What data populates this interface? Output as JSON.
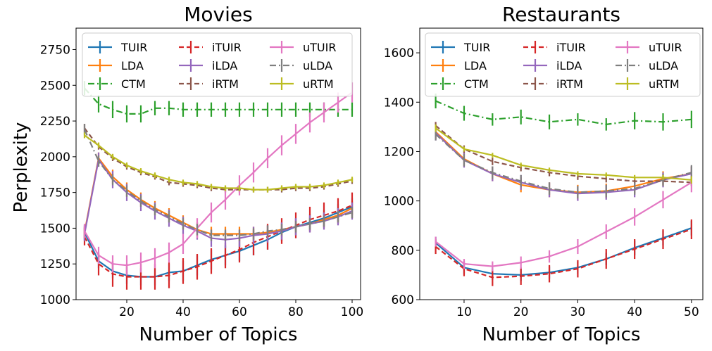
{
  "figure": {
    "ylabel": "Perplexity"
  },
  "series_styles": {
    "TUIR": {
      "color": "#1f77b4",
      "dash": "solid"
    },
    "LDA": {
      "color": "#ff7f0e",
      "dash": "solid"
    },
    "CTM": {
      "color": "#2ca02c",
      "dash": "dashdot"
    },
    "iTUIR": {
      "color": "#d62728",
      "dash": "dashed"
    },
    "iLDA": {
      "color": "#9467bd",
      "dash": "solid"
    },
    "iRTM": {
      "color": "#8c564b",
      "dash": "dashed"
    },
    "uTUIR": {
      "color": "#e377c2",
      "dash": "solid"
    },
    "uLDA": {
      "color": "#7f7f7f",
      "dash": "dashdot"
    },
    "uRTM": {
      "color": "#bcbd22",
      "dash": "solid"
    }
  },
  "chart_data": [
    {
      "type": "line",
      "title": "Movies",
      "xlabel": "Number of Topics",
      "ylabel": "Perplexity",
      "xlim": [
        2,
        103
      ],
      "ylim": [
        1000,
        2900
      ],
      "xticks": [
        20,
        40,
        60,
        80,
        100
      ],
      "yticks": [
        1000,
        1250,
        1500,
        1750,
        2000,
        2250,
        2500,
        2750
      ],
      "grid": false,
      "legend": {
        "placement": "top",
        "columns": 3
      },
      "x": [
        5,
        10,
        15,
        20,
        25,
        30,
        35,
        40,
        45,
        50,
        55,
        60,
        65,
        70,
        75,
        80,
        85,
        90,
        95,
        100
      ],
      "series": [
        {
          "name": "TUIR",
          "values": [
            1470,
            1270,
            1200,
            1170,
            1160,
            1160,
            1190,
            1200,
            1240,
            1280,
            1310,
            1340,
            1380,
            1420,
            1470,
            1510,
            1540,
            1570,
            1610,
            1650
          ],
          "err": [
            50,
            50,
            50,
            60,
            60,
            60,
            60,
            70,
            70,
            70,
            70,
            70,
            70,
            70,
            60,
            60,
            60,
            60,
            60,
            60
          ]
        },
        {
          "name": "LDA",
          "values": [
            1470,
            1990,
            1860,
            1770,
            1700,
            1640,
            1590,
            1540,
            1490,
            1460,
            1460,
            1460,
            1460,
            1470,
            1490,
            1510,
            1530,
            1560,
            1590,
            1640
          ],
          "err": [
            40,
            40,
            50,
            50,
            50,
            50,
            50,
            50,
            50,
            50,
            50,
            50,
            50,
            50,
            50,
            50,
            50,
            50,
            50,
            50
          ]
        },
        {
          "name": "CTM",
          "values": [
            2480,
            2370,
            2330,
            2300,
            2300,
            2340,
            2340,
            2330,
            2330,
            2330,
            2330,
            2330,
            2330,
            2330,
            2330,
            2330,
            2330,
            2330,
            2330,
            2330
          ],
          "err": [
            50,
            60,
            60,
            60,
            60,
            50,
            50,
            50,
            50,
            50,
            50,
            50,
            50,
            50,
            50,
            50,
            50,
            50,
            50,
            50
          ]
        },
        {
          "name": "iTUIR",
          "values": [
            1440,
            1250,
            1180,
            1160,
            1160,
            1160,
            1170,
            1200,
            1230,
            1270,
            1310,
            1350,
            1400,
            1440,
            1480,
            1520,
            1560,
            1590,
            1620,
            1660
          ],
          "err": [
            60,
            80,
            90,
            90,
            90,
            90,
            90,
            90,
            90,
            90,
            90,
            90,
            90,
            90,
            90,
            90,
            90,
            90,
            90,
            90
          ]
        },
        {
          "name": "iLDA",
          "values": [
            1460,
            1980,
            1840,
            1750,
            1680,
            1620,
            1570,
            1520,
            1480,
            1430,
            1420,
            1430,
            1450,
            1460,
            1480,
            1510,
            1530,
            1550,
            1580,
            1620
          ],
          "err": [
            50,
            50,
            60,
            60,
            60,
            60,
            60,
            60,
            60,
            60,
            60,
            60,
            60,
            60,
            60,
            60,
            60,
            60,
            60,
            60
          ]
        },
        {
          "name": "iRTM",
          "values": [
            2200,
            2070,
            1990,
            1930,
            1890,
            1860,
            1820,
            1810,
            1800,
            1780,
            1770,
            1770,
            1770,
            1770,
            1770,
            1780,
            1780,
            1790,
            1810,
            1830
          ],
          "err": [
            30,
            20,
            20,
            20,
            20,
            20,
            20,
            20,
            20,
            20,
            20,
            20,
            20,
            20,
            20,
            20,
            20,
            20,
            20,
            20
          ]
        },
        {
          "name": "uTUIR",
          "values": [
            1480,
            1310,
            1250,
            1240,
            1260,
            1290,
            1330,
            1390,
            1500,
            1610,
            1700,
            1800,
            1890,
            1990,
            2080,
            2160,
            2240,
            2310,
            2380,
            2450
          ],
          "err": [
            50,
            60,
            60,
            70,
            70,
            70,
            70,
            70,
            70,
            70,
            70,
            70,
            70,
            70,
            70,
            70,
            70,
            70,
            70,
            70
          ]
        },
        {
          "name": "uLDA",
          "values": [
            2190,
            1970,
            1840,
            1760,
            1690,
            1630,
            1580,
            1530,
            1490,
            1450,
            1450,
            1450,
            1460,
            1480,
            1490,
            1510,
            1530,
            1550,
            1580,
            1610
          ],
          "err": [
            40,
            40,
            40,
            40,
            40,
            40,
            40,
            40,
            40,
            40,
            40,
            40,
            40,
            40,
            40,
            40,
            40,
            40,
            40,
            40
          ]
        },
        {
          "name": "uRTM",
          "values": [
            2150,
            2080,
            2000,
            1940,
            1900,
            1870,
            1840,
            1820,
            1810,
            1790,
            1780,
            1780,
            1770,
            1770,
            1780,
            1790,
            1790,
            1800,
            1820,
            1840
          ],
          "err": [
            20,
            20,
            20,
            20,
            20,
            20,
            20,
            20,
            20,
            20,
            20,
            20,
            20,
            20,
            20,
            20,
            20,
            20,
            20,
            20
          ]
        }
      ]
    },
    {
      "type": "line",
      "title": "Restaurants",
      "xlabel": "Number of Topics",
      "ylabel": "",
      "xlim": [
        2.2,
        52
      ],
      "ylim": [
        600,
        1700
      ],
      "xticks": [
        10,
        20,
        30,
        40,
        50
      ],
      "yticks": [
        600,
        800,
        1000,
        1200,
        1400,
        1600
      ],
      "grid": false,
      "legend": {
        "placement": "top",
        "columns": 3
      },
      "x": [
        5,
        10,
        15,
        20,
        25,
        30,
        35,
        40,
        45,
        50
      ],
      "series": [
        {
          "name": "TUIR",
          "values": [
            830,
            730,
            705,
            700,
            710,
            730,
            765,
            810,
            850,
            890
          ],
          "err": [
            25,
            25,
            25,
            25,
            25,
            25,
            25,
            30,
            30,
            30
          ]
        },
        {
          "name": "LDA",
          "values": [
            1280,
            1170,
            1110,
            1065,
            1045,
            1035,
            1040,
            1060,
            1090,
            1110
          ],
          "err": [
            30,
            30,
            30,
            30,
            30,
            30,
            30,
            30,
            30,
            30
          ]
        },
        {
          "name": "CTM",
          "values": [
            1405,
            1355,
            1330,
            1340,
            1320,
            1330,
            1310,
            1325,
            1320,
            1330
          ],
          "err": [
            30,
            30,
            25,
            30,
            30,
            25,
            25,
            35,
            35,
            35
          ]
        },
        {
          "name": "iTUIR",
          "values": [
            815,
            725,
            690,
            695,
            705,
            725,
            765,
            805,
            845,
            885
          ],
          "err": [
            30,
            30,
            35,
            35,
            35,
            35,
            40,
            40,
            40,
            40
          ]
        },
        {
          "name": "iLDA",
          "values": [
            1275,
            1165,
            1110,
            1075,
            1045,
            1030,
            1035,
            1045,
            1085,
            1110
          ],
          "err": [
            30,
            30,
            30,
            30,
            30,
            30,
            30,
            30,
            30,
            30
          ]
        },
        {
          "name": "iRTM",
          "values": [
            1305,
            1210,
            1160,
            1135,
            1115,
            1100,
            1090,
            1080,
            1080,
            1075
          ],
          "err": [
            15,
            15,
            15,
            15,
            15,
            15,
            15,
            15,
            15,
            15
          ]
        },
        {
          "name": "uTUIR",
          "values": [
            835,
            745,
            735,
            750,
            775,
            815,
            875,
            935,
            1005,
            1075
          ],
          "err": [
            20,
            20,
            20,
            25,
            25,
            30,
            30,
            35,
            35,
            40
          ]
        },
        {
          "name": "uLDA",
          "values": [
            1270,
            1165,
            1115,
            1080,
            1050,
            1035,
            1040,
            1050,
            1085,
            1115
          ],
          "err": [
            25,
            25,
            25,
            25,
            25,
            25,
            25,
            25,
            25,
            30
          ]
        },
        {
          "name": "uRTM",
          "values": [
            1295,
            1210,
            1185,
            1145,
            1125,
            1110,
            1105,
            1095,
            1095,
            1085
          ],
          "err": [
            15,
            10,
            10,
            10,
            10,
            10,
            10,
            10,
            10,
            15
          ]
        }
      ]
    }
  ]
}
